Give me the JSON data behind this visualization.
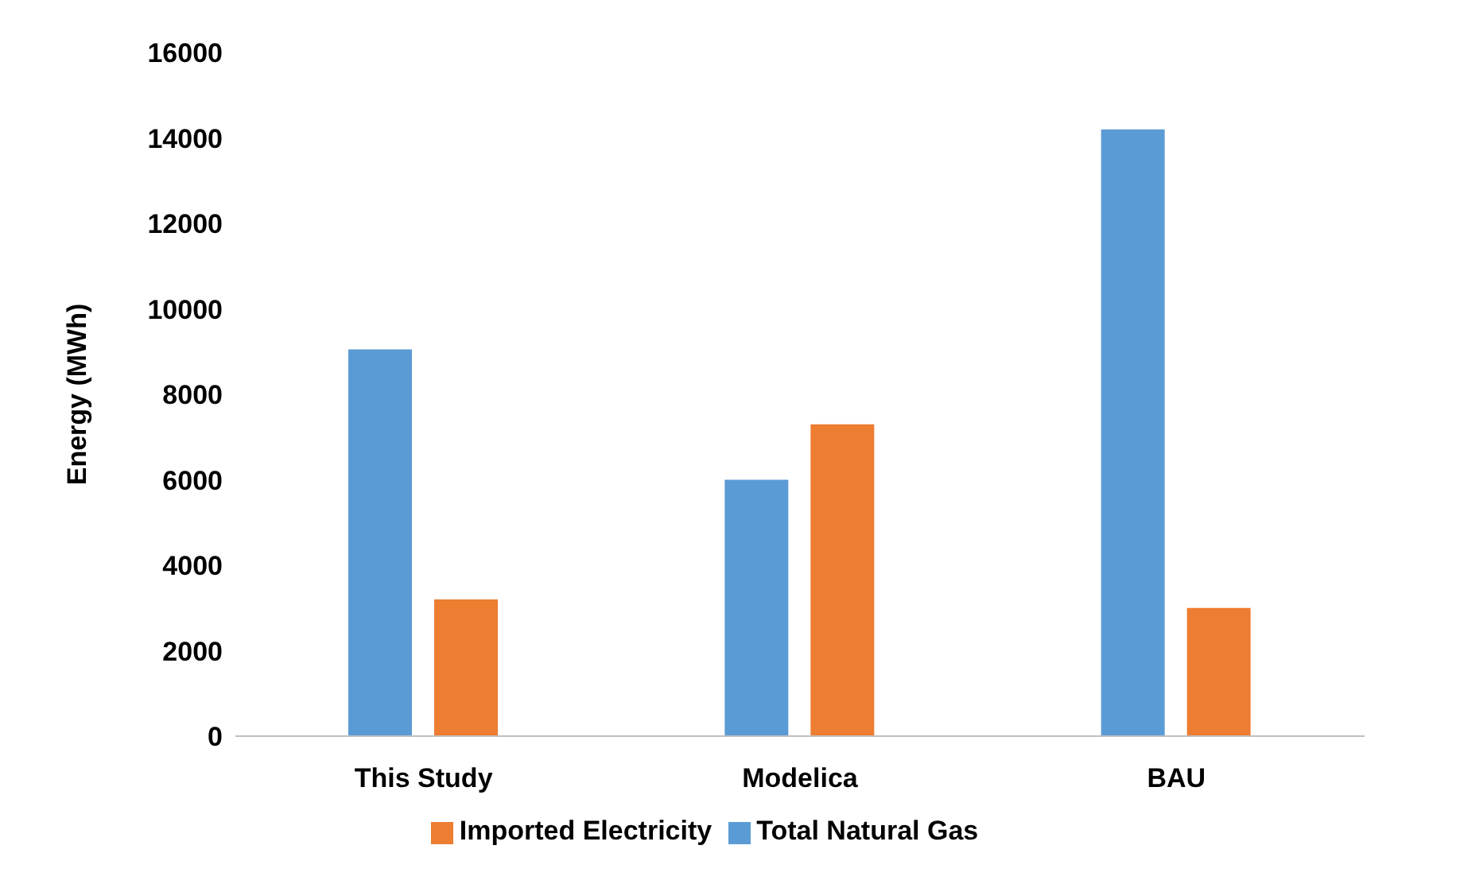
{
  "chart_data": {
    "type": "bar",
    "ylabel": "Energy (MWh)",
    "categories": [
      "This Study",
      "Modelica",
      "BAU"
    ],
    "series": [
      {
        "name": "Total Natural Gas",
        "color": "#5b9bd5",
        "values": [
          9050,
          6000,
          14200
        ]
      },
      {
        "name": "Imported Electricity",
        "color": "#ed7d31",
        "values": [
          3200,
          7300,
          3000
        ]
      }
    ],
    "ylim": [
      0,
      16000
    ],
    "yticks": [
      0,
      2000,
      4000,
      6000,
      8000,
      10000,
      12000,
      14000,
      16000
    ],
    "grid": false,
    "legend": "bottom"
  }
}
